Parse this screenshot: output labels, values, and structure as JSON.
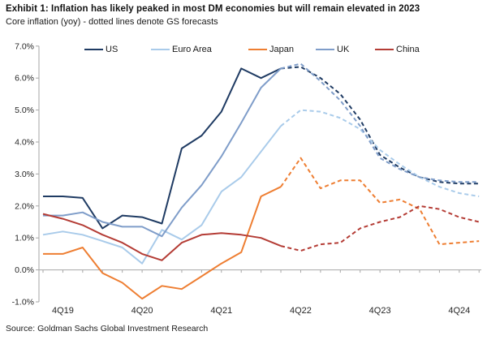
{
  "header": {
    "title": "Exhibit 1: Inflation has likely peaked in most DM economies but will remain elevated in 2023",
    "subtitle": "Core inflation (yoy) - dotted lines denote GS forecasts"
  },
  "footer": {
    "source": "Source: Goldman Sachs Global Investment Research"
  },
  "chart_data": {
    "type": "line",
    "title": "Exhibit 1: Inflation has likely peaked in most DM economies but will remain elevated in 2023",
    "subtitle": "Core inflation (yoy) - dotted lines denote GS forecasts",
    "x": [
      "3Q19",
      "4Q19",
      "1Q20",
      "2Q20",
      "3Q20",
      "4Q20",
      "1Q21",
      "2Q21",
      "3Q21",
      "4Q21",
      "1Q22",
      "2Q22",
      "3Q22",
      "4Q22",
      "1Q23",
      "2Q23",
      "3Q23",
      "4Q23",
      "1Q24",
      "2Q24",
      "3Q24",
      "4Q24",
      "1Q25"
    ],
    "x_tick_labels": [
      "4Q19",
      "4Q20",
      "4Q21",
      "4Q22",
      "4Q23",
      "4Q24"
    ],
    "x_tick_indices": [
      1,
      5,
      9,
      13,
      17,
      21
    ],
    "y_tick_labels": [
      "7.0%",
      "6.0%",
      "5.0%",
      "4.0%",
      "3.0%",
      "2.0%",
      "1.0%",
      "0.0%",
      "-1.0%"
    ],
    "y_tick_values": [
      7,
      6,
      5,
      4,
      3,
      2,
      1,
      0,
      -1
    ],
    "ylim": [
      -1.0,
      7.0
    ],
    "grid": false,
    "legend_position": "top",
    "forecast_note": "dotted lines denote GS forecasts",
    "forecast_start_index": 12,
    "axis_color": "#a6a6a6",
    "series": [
      {
        "name": "US",
        "color": "#1f3b63",
        "values": [
          2.3,
          2.3,
          2.25,
          1.3,
          1.7,
          1.65,
          1.45,
          3.8,
          4.2,
          4.95,
          6.3,
          6.0,
          6.3,
          6.35,
          6.0,
          5.5,
          4.7,
          3.6,
          3.2,
          2.9,
          2.75,
          2.7,
          2.7
        ]
      },
      {
        "name": "Euro Area",
        "color": "#a9cbea",
        "values": [
          1.1,
          1.2,
          1.1,
          0.9,
          0.7,
          0.2,
          1.25,
          0.95,
          1.4,
          2.45,
          2.9,
          3.7,
          4.5,
          5.0,
          4.95,
          4.75,
          4.4,
          3.75,
          3.3,
          2.9,
          2.6,
          2.4,
          2.3
        ]
      },
      {
        "name": "Japan",
        "color": "#ee7e32",
        "values": [
          0.5,
          0.5,
          0.7,
          -0.1,
          -0.4,
          -0.9,
          -0.5,
          -0.6,
          -0.2,
          0.2,
          0.55,
          2.3,
          2.6,
          3.5,
          2.55,
          2.8,
          2.8,
          2.1,
          2.2,
          1.9,
          0.8,
          0.85,
          0.9
        ]
      },
      {
        "name": "UK",
        "color": "#7f9dc9",
        "values": [
          1.7,
          1.7,
          1.8,
          1.5,
          1.35,
          1.35,
          1.05,
          1.95,
          2.65,
          3.55,
          4.6,
          5.7,
          6.3,
          6.45,
          5.9,
          5.3,
          4.5,
          3.5,
          3.15,
          2.9,
          2.8,
          2.75,
          2.75
        ]
      },
      {
        "name": "China",
        "color": "#b43c35",
        "values": [
          1.75,
          1.6,
          1.4,
          1.1,
          0.85,
          0.5,
          0.3,
          0.85,
          1.1,
          1.15,
          1.1,
          1.0,
          0.75,
          0.6,
          0.8,
          0.85,
          1.3,
          1.5,
          1.65,
          2.0,
          1.9,
          1.65,
          1.5
        ]
      }
    ]
  }
}
